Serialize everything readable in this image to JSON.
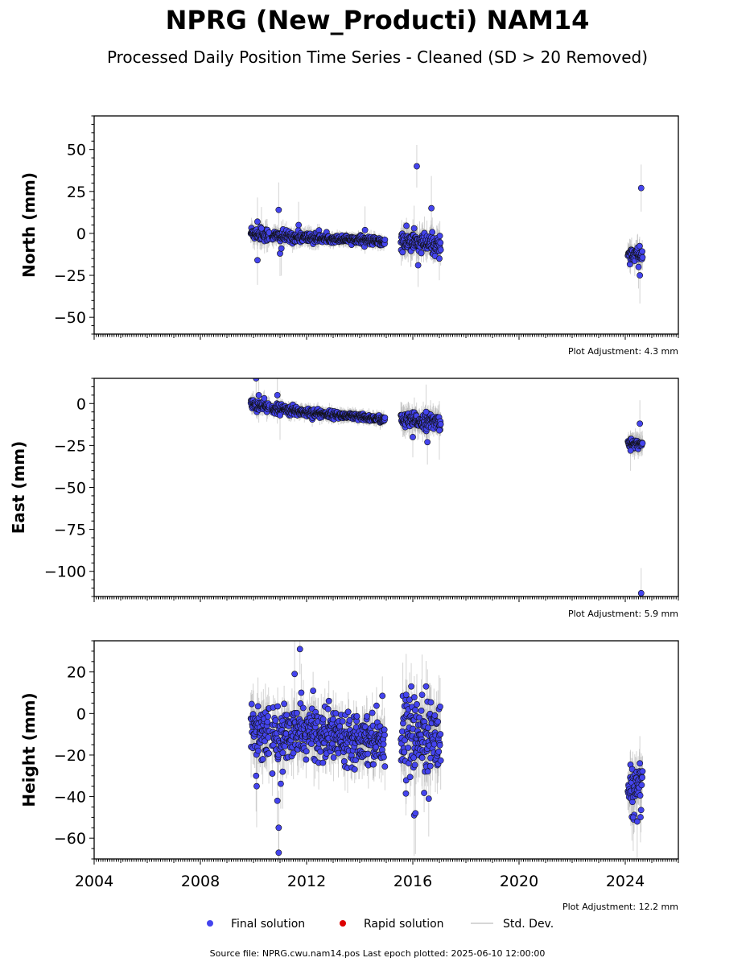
{
  "title": "NPRG (New_Producti) NAM14",
  "subtitle": "Processed Daily Position Time Series - Cleaned (SD > 20 Removed)",
  "legend": {
    "final": "Final solution",
    "rapid": "Rapid solution",
    "std": "Std. Dev."
  },
  "source": "Source file: NPRG.cwu.nam14.pos  Last epoch plotted: 2025-06-10 12:00:00",
  "colors": {
    "final": "#4444ee",
    "rapid": "#dd0000",
    "std": "#b0b0b0",
    "edge": "#101010"
  },
  "chart_data": [
    {
      "type": "scatter",
      "ylabel": "North (mm)",
      "xlim": [
        2004.0,
        2026.0
      ],
      "ylim": [
        -60,
        70
      ],
      "yticks": [
        50,
        25,
        0,
        -25,
        -50
      ],
      "ytick_labels": [
        "50",
        "25",
        "0",
        "−25",
        "−50"
      ],
      "adjustment": "Plot Adjustment: 4.3 mm",
      "segments": [
        {
          "x0": 2009.9,
          "x1": 2010.6,
          "y0": 0.5,
          "y1": -1.0,
          "noise": 2.0,
          "sd": 5
        },
        {
          "x0": 2010.7,
          "x1": 2012.5,
          "y0": -1.5,
          "y1": -3.0,
          "noise": 1.6,
          "sd": 4
        },
        {
          "x0": 2012.5,
          "x1": 2014.0,
          "y0": -3.0,
          "y1": -3.5,
          "noise": 1.0,
          "sd": 3
        },
        {
          "x0": 2014.0,
          "x1": 2014.95,
          "y0": -3.5,
          "y1": -5.5,
          "noise": 1.2,
          "sd": 3
        },
        {
          "x0": 2015.55,
          "x1": 2017.05,
          "y0": -5.0,
          "y1": -7.0,
          "noise": 3.0,
          "sd": 7
        },
        {
          "x0": 2024.1,
          "x1": 2024.65,
          "y0": -12.0,
          "y1": -13.0,
          "noise": 2.2,
          "sd": 6
        }
      ],
      "outliers": [
        {
          "x": 2010.15,
          "y": -16
        },
        {
          "x": 2010.15,
          "y": 7
        },
        {
          "x": 2010.3,
          "y": 3
        },
        {
          "x": 2010.95,
          "y": 14
        },
        {
          "x": 2011.0,
          "y": -12
        },
        {
          "x": 2011.05,
          "y": -9
        },
        {
          "x": 2011.7,
          "y": 5
        },
        {
          "x": 2014.2,
          "y": 2
        },
        {
          "x": 2016.15,
          "y": 40
        },
        {
          "x": 2016.7,
          "y": 15
        },
        {
          "x": 2016.2,
          "y": -19
        },
        {
          "x": 2016.05,
          "y": 3
        },
        {
          "x": 2017.0,
          "y": -15
        },
        {
          "x": 2024.6,
          "y": 27
        },
        {
          "x": 2024.55,
          "y": -25
        },
        {
          "x": 2024.5,
          "y": -20
        }
      ]
    },
    {
      "type": "scatter",
      "ylabel": "East (mm)",
      "xlim": [
        2004.0,
        2026.0
      ],
      "ylim": [
        -115,
        15
      ],
      "yticks": [
        0,
        -25,
        -50,
        -75,
        -100
      ],
      "ytick_labels": [
        "0",
        "−25",
        "−50",
        "−75",
        "−100"
      ],
      "adjustment": "Plot Adjustment: 5.9 mm",
      "segments": [
        {
          "x0": 2009.9,
          "x1": 2010.6,
          "y0": -0.5,
          "y1": -2.5,
          "noise": 1.6,
          "sd": 4
        },
        {
          "x0": 2010.7,
          "x1": 2012.5,
          "y0": -3.0,
          "y1": -6.0,
          "noise": 1.4,
          "sd": 3
        },
        {
          "x0": 2012.5,
          "x1": 2014.95,
          "y0": -6.0,
          "y1": -9.5,
          "noise": 1.0,
          "sd": 3
        },
        {
          "x0": 2015.55,
          "x1": 2017.05,
          "y0": -10.0,
          "y1": -11.0,
          "noise": 2.2,
          "sd": 6
        },
        {
          "x0": 2024.1,
          "x1": 2024.65,
          "y0": -23.5,
          "y1": -24.5,
          "noise": 1.2,
          "sd": 5
        }
      ],
      "outliers": [
        {
          "x": 2010.1,
          "y": 15
        },
        {
          "x": 2010.2,
          "y": 5
        },
        {
          "x": 2010.9,
          "y": 5
        },
        {
          "x": 2011.0,
          "y": -7
        },
        {
          "x": 2016.0,
          "y": -20
        },
        {
          "x": 2016.5,
          "y": -5
        },
        {
          "x": 2016.55,
          "y": -23
        },
        {
          "x": 2017.0,
          "y": -16
        },
        {
          "x": 2024.55,
          "y": -12
        },
        {
          "x": 2024.6,
          "y": -113
        },
        {
          "x": 2024.2,
          "y": -28
        }
      ]
    },
    {
      "type": "scatter",
      "ylabel": "Height (mm)",
      "xlim": [
        2004.0,
        2026.0
      ],
      "ylim": [
        -70,
        35
      ],
      "yticks": [
        20,
        0,
        -20,
        -40,
        -60
      ],
      "ytick_labels": [
        "20",
        "0",
        "−20",
        "−40",
        "−60"
      ],
      "xticks": [
        2004,
        2008,
        2012,
        2016,
        2020,
        2024
      ],
      "xtick_labels": [
        "2004",
        "2008",
        "2012",
        "2016",
        "2020",
        "2024"
      ],
      "adjustment": "Plot Adjustment: 12.2 mm",
      "segments": [
        {
          "x0": 2009.9,
          "x1": 2010.6,
          "y0": -8.0,
          "y1": -8.0,
          "noise": 7.0,
          "sd": 10
        },
        {
          "x0": 2010.7,
          "x1": 2012.5,
          "y0": -12.0,
          "y1": -8.0,
          "noise": 6.0,
          "sd": 9
        },
        {
          "x0": 2012.5,
          "x1": 2014.95,
          "y0": -10.0,
          "y1": -12.0,
          "noise": 6.0,
          "sd": 8
        },
        {
          "x0": 2015.55,
          "x1": 2017.05,
          "y0": -10.0,
          "y1": -12.0,
          "noise": 9.0,
          "sd": 11
        },
        {
          "x0": 2024.1,
          "x1": 2024.65,
          "y0": -37.0,
          "y1": -37.0,
          "noise": 5.5,
          "sd": 9
        }
      ],
      "outliers": [
        {
          "x": 2011.75,
          "y": 31
        },
        {
          "x": 2011.55,
          "y": 19
        },
        {
          "x": 2010.95,
          "y": -67
        },
        {
          "x": 2010.95,
          "y": -55
        },
        {
          "x": 2010.9,
          "y": -42
        },
        {
          "x": 2010.12,
          "y": -35
        },
        {
          "x": 2010.1,
          "y": -30
        },
        {
          "x": 2011.8,
          "y": 10
        },
        {
          "x": 2011.1,
          "y": -28
        },
        {
          "x": 2016.05,
          "y": -49
        },
        {
          "x": 2016.1,
          "y": -48
        },
        {
          "x": 2016.6,
          "y": -41
        },
        {
          "x": 2016.35,
          "y": 9
        },
        {
          "x": 2016.5,
          "y": 13
        },
        {
          "x": 2015.75,
          "y": 9
        },
        {
          "x": 2024.55,
          "y": -24
        },
        {
          "x": 2024.45,
          "y": -52
        },
        {
          "x": 2024.3,
          "y": -50
        }
      ]
    }
  ]
}
